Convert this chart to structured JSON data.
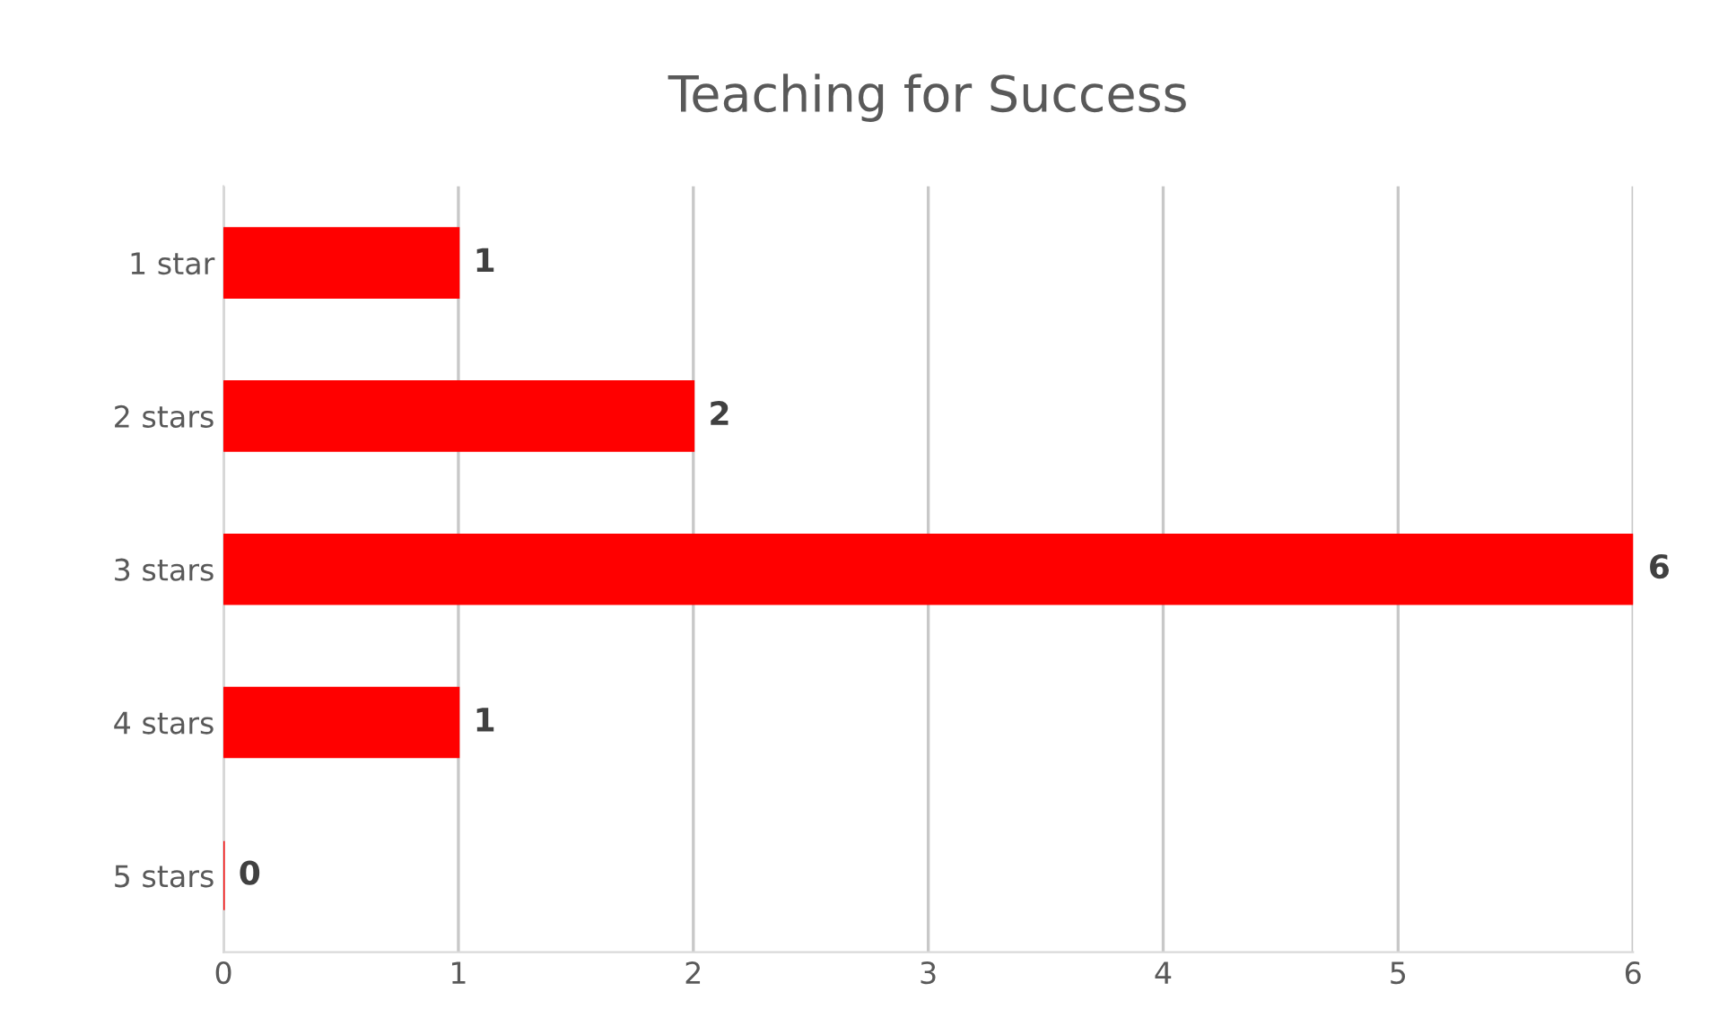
{
  "chart_data": {
    "type": "bar",
    "orientation": "horizontal",
    "title": "Teaching for Success",
    "categories": [
      "1 star",
      "2 stars",
      "3 stars",
      "4 stars",
      "5 stars"
    ],
    "values": [
      1,
      2,
      6,
      1,
      0
    ],
    "color": "#ff0000",
    "xlim": [
      0,
      6
    ],
    "xticks": [
      0,
      1,
      2,
      3,
      4,
      5,
      6
    ],
    "grid": "x",
    "data_labels": true
  }
}
